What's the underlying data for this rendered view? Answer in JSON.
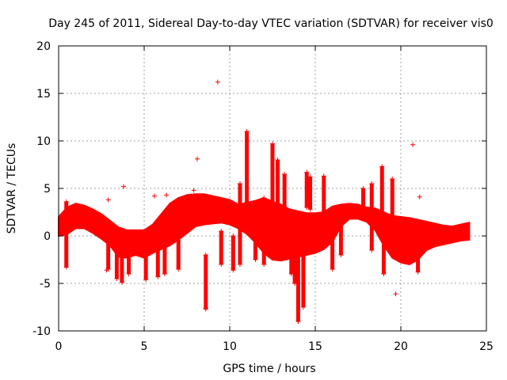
{
  "chart_data": {
    "type": "scatter",
    "title": "Day 245 of 2011, Sidereal Day-to-day VTEC variation (SDTVAR) for receiver vis0",
    "xlabel": "GPS time / hours",
    "ylabel": "SDTVAR / TECUs",
    "xlim": [
      0,
      25
    ],
    "ylim": [
      -10,
      20
    ],
    "xticks": [
      0,
      5,
      10,
      15,
      20,
      25
    ],
    "yticks": [
      -10,
      -5,
      0,
      5,
      10,
      15,
      20
    ],
    "xtick_labels": [
      "0",
      "5",
      "10",
      "15",
      "20",
      "25"
    ],
    "ytick_labels": [
      "-10",
      "-5",
      "0",
      "5",
      "10",
      "15",
      "20"
    ],
    "grid": true,
    "marker": "+",
    "color": "#ff0000",
    "series": [
      {
        "name": "SDTVAR",
        "band": {
          "x": [
            0.0,
            0.5,
            1.0,
            1.5,
            2.0,
            2.5,
            3.0,
            3.5,
            4.0,
            4.5,
            5.0,
            5.5,
            6.0,
            6.5,
            7.0,
            7.5,
            8.0,
            8.5,
            9.0,
            9.5,
            10.0,
            10.5,
            11.0,
            11.5,
            12.0,
            12.5,
            13.0,
            13.5,
            14.0,
            14.5,
            15.0,
            15.5,
            16.0,
            16.5,
            17.0,
            17.5,
            18.0,
            18.5,
            19.0,
            19.5,
            20.0,
            20.5,
            21.0,
            21.5,
            22.0,
            22.5,
            23.0,
            23.5,
            24.0
          ],
          "lower": [
            0.0,
            0.2,
            0.8,
            0.8,
            0.3,
            -0.3,
            -1.0,
            -2.2,
            -2.3,
            -2.0,
            -2.3,
            -1.8,
            -1.4,
            -1.0,
            -0.4,
            0.3,
            1.0,
            1.2,
            1.3,
            1.4,
            1.2,
            0.8,
            0.2,
            -0.7,
            -1.8,
            -2.5,
            -2.6,
            -2.4,
            -2.2,
            -2.0,
            -1.8,
            -1.4,
            -0.6,
            1.0,
            1.8,
            1.8,
            1.5,
            0.6,
            -1.0,
            -2.3,
            -2.8,
            -3.0,
            -2.5,
            -1.5,
            -1.1,
            -0.9,
            -0.7,
            -0.5,
            -0.4
          ],
          "upper": [
            2.0,
            3.0,
            3.4,
            3.2,
            2.8,
            2.3,
            1.6,
            0.9,
            0.6,
            0.6,
            0.6,
            1.2,
            2.3,
            3.4,
            4.0,
            4.3,
            4.4,
            4.4,
            4.2,
            4.0,
            3.8,
            3.3,
            3.5,
            3.7,
            4.0,
            3.6,
            3.3,
            2.8,
            2.6,
            2.4,
            2.4,
            2.5,
            3.1,
            3.3,
            3.4,
            3.3,
            3.0,
            2.9,
            2.5,
            2.1,
            2.0,
            1.9,
            1.7,
            1.5,
            1.3,
            1.1,
            1.0,
            1.2,
            1.4
          ]
        },
        "spikes": [
          {
            "x": 0.45,
            "low": -3.3,
            "high": 3.6
          },
          {
            "x": 2.9,
            "low": -3.5,
            "high": 0.0
          },
          {
            "x": 3.4,
            "low": -4.5,
            "high": 0.0
          },
          {
            "x": 3.7,
            "low": -4.9,
            "high": -1.0
          },
          {
            "x": 4.1,
            "low": -4.0,
            "high": -1.5
          },
          {
            "x": 5.1,
            "low": -4.6,
            "high": -1.0
          },
          {
            "x": 5.8,
            "low": -4.3,
            "high": -0.8
          },
          {
            "x": 6.2,
            "low": -4.0,
            "high": 0.0
          },
          {
            "x": 7.0,
            "low": -3.5,
            "high": 0.5
          },
          {
            "x": 8.6,
            "low": -7.7,
            "high": -2.0
          },
          {
            "x": 9.5,
            "low": -3.0,
            "high": 0.5
          },
          {
            "x": 10.2,
            "low": -3.6,
            "high": 0.0
          },
          {
            "x": 10.6,
            "low": -3.0,
            "high": 5.5
          },
          {
            "x": 11.0,
            "low": 2.0,
            "high": 11.0
          },
          {
            "x": 11.5,
            "low": -2.5,
            "high": 2.5
          },
          {
            "x": 12.0,
            "low": -3.0,
            "high": 4.0
          },
          {
            "x": 12.5,
            "low": 3.0,
            "high": 9.7
          },
          {
            "x": 12.8,
            "low": 2.5,
            "high": 8.0
          },
          {
            "x": 13.2,
            "low": 2.0,
            "high": 6.5
          },
          {
            "x": 13.6,
            "low": -4.0,
            "high": 2.0
          },
          {
            "x": 13.8,
            "low": -5.0,
            "high": 1.0
          },
          {
            "x": 14.0,
            "low": -9.0,
            "high": -2.0
          },
          {
            "x": 14.3,
            "low": -7.5,
            "high": -1.5
          },
          {
            "x": 14.5,
            "low": 3.0,
            "high": 6.7
          },
          {
            "x": 14.7,
            "low": 2.8,
            "high": 6.2
          },
          {
            "x": 15.5,
            "low": 2.5,
            "high": 6.3
          },
          {
            "x": 16.0,
            "low": -3.5,
            "high": 1.0
          },
          {
            "x": 16.5,
            "low": -2.0,
            "high": 1.5
          },
          {
            "x": 17.8,
            "low": 3.0,
            "high": 5.0
          },
          {
            "x": 18.3,
            "low": -1.5,
            "high": 5.5
          },
          {
            "x": 18.9,
            "low": 1.0,
            "high": 7.3
          },
          {
            "x": 19.0,
            "low": -4.0,
            "high": 1.0
          },
          {
            "x": 19.5,
            "low": 1.0,
            "high": 6.0
          },
          {
            "x": 21.0,
            "low": -3.8,
            "high": 0.0
          }
        ],
        "outliers": [
          {
            "x": 9.3,
            "y": 16.2
          },
          {
            "x": 8.1,
            "y": 8.1
          },
          {
            "x": 3.8,
            "y": 5.2
          },
          {
            "x": 2.9,
            "y": 3.8
          },
          {
            "x": 5.6,
            "y": 4.2
          },
          {
            "x": 6.3,
            "y": 4.3
          },
          {
            "x": 7.9,
            "y": 4.8
          },
          {
            "x": 20.7,
            "y": 9.6
          },
          {
            "x": 21.1,
            "y": 4.1
          },
          {
            "x": 19.7,
            "y": -6.1
          },
          {
            "x": 2.8,
            "y": -3.6
          },
          {
            "x": 8.6,
            "y": -7.6
          },
          {
            "x": 14.0,
            "y": -9.0
          }
        ]
      }
    ]
  }
}
